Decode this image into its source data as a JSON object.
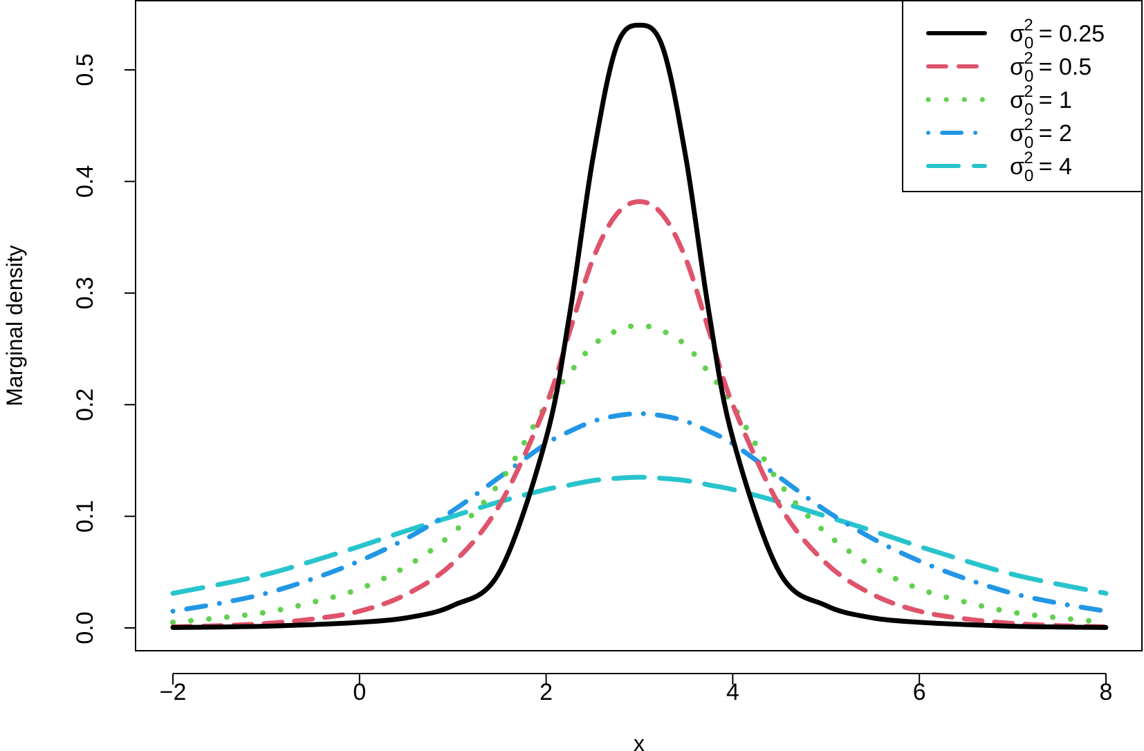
{
  "chart_data": {
    "type": "line",
    "xlabel": "x",
    "ylabel": "Marginal density",
    "xlim": [
      -2,
      8
    ],
    "ylim": [
      0,
      0.55
    ],
    "xticks": [
      -2,
      0,
      2,
      4,
      6,
      8
    ],
    "xtick_labels": [
      "−2",
      "0",
      "2",
      "4",
      "6",
      "8"
    ],
    "yticks": [
      0.0,
      0.1,
      0.2,
      0.3,
      0.4,
      0.5
    ],
    "ytick_labels": [
      "0.0",
      "0.1",
      "0.2",
      "0.3",
      "0.4",
      "0.5"
    ],
    "grid": false,
    "legend_position": "top-right",
    "x": [
      -2,
      -1.5,
      -1,
      -0.5,
      0,
      0.5,
      1,
      1.5,
      2,
      2.25,
      2.5,
      2.75,
      3,
      3.25,
      3.5,
      3.75,
      4,
      4.5,
      5,
      5.5,
      6,
      6.5,
      7,
      7.5,
      8
    ],
    "series": [
      {
        "sigma_label": "σ",
        "subscript": "0",
        "superscript": "2",
        "value_text": "= 0.25",
        "color": "#000000",
        "dash": "solid",
        "values": [
          0.0004,
          0.0008,
          0.0015,
          0.003,
          0.005,
          0.009,
          0.02,
          0.05,
          0.17,
          0.28,
          0.42,
          0.52,
          0.54,
          0.52,
          0.42,
          0.28,
          0.17,
          0.05,
          0.02,
          0.009,
          0.005,
          0.003,
          0.0015,
          0.0008,
          0.0004
        ]
      },
      {
        "sigma_label": "σ",
        "subscript": "0",
        "superscript": "2",
        "value_text": "= 0.5",
        "color": "#DF536B",
        "dash": "dashed",
        "values": [
          0.001,
          0.002,
          0.004,
          0.008,
          0.015,
          0.03,
          0.058,
          0.11,
          0.2,
          0.265,
          0.33,
          0.37,
          0.382,
          0.37,
          0.33,
          0.265,
          0.2,
          0.11,
          0.058,
          0.03,
          0.015,
          0.008,
          0.004,
          0.002,
          0.001
        ]
      },
      {
        "sigma_label": "σ",
        "subscript": "0",
        "superscript": "2",
        "value_text": "= 1",
        "color": "#61D04F",
        "dash": "dotted",
        "values": [
          0.005,
          0.009,
          0.014,
          0.023,
          0.035,
          0.055,
          0.085,
          0.13,
          0.2,
          0.228,
          0.253,
          0.266,
          0.271,
          0.266,
          0.253,
          0.228,
          0.2,
          0.13,
          0.085,
          0.055,
          0.035,
          0.023,
          0.014,
          0.009,
          0.005
        ]
      },
      {
        "sigma_label": "σ",
        "subscript": "0",
        "superscript": "2",
        "value_text": "= 2",
        "color": "#2297E6",
        "dash": "dotdash",
        "values": [
          0.015,
          0.022,
          0.031,
          0.044,
          0.06,
          0.08,
          0.105,
          0.135,
          0.165,
          0.176,
          0.185,
          0.19,
          0.192,
          0.19,
          0.185,
          0.176,
          0.165,
          0.135,
          0.105,
          0.08,
          0.06,
          0.044,
          0.031,
          0.022,
          0.015
        ]
      },
      {
        "sigma_label": "σ",
        "subscript": "0",
        "superscript": "2",
        "value_text": "= 4",
        "color": "#28C4CC",
        "dash": "longdash",
        "values": [
          0.031,
          0.039,
          0.048,
          0.06,
          0.073,
          0.087,
          0.1,
          0.113,
          0.124,
          0.128,
          0.132,
          0.134,
          0.135,
          0.134,
          0.132,
          0.128,
          0.124,
          0.113,
          0.1,
          0.087,
          0.073,
          0.06,
          0.048,
          0.039,
          0.031
        ]
      }
    ]
  }
}
